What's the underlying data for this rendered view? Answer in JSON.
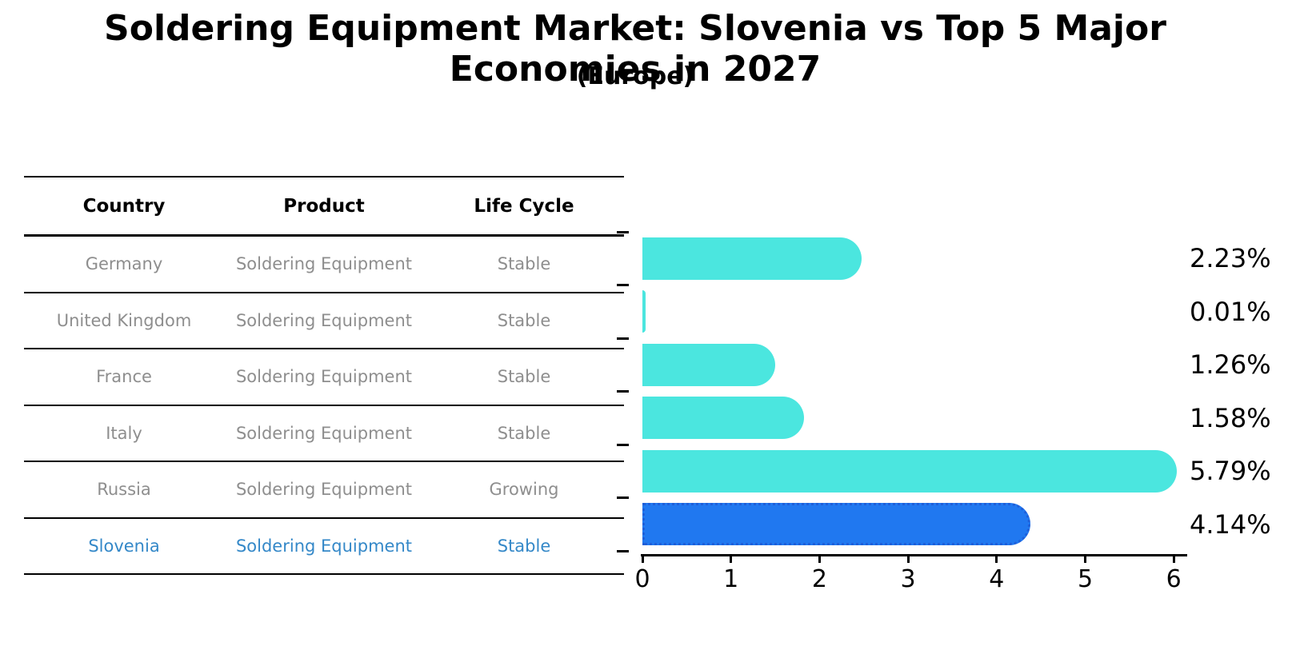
{
  "header": {
    "title": "Soldering Equipment Market: Slovenia vs Top 5 Major Economies in 2027",
    "subtitle": "(Europe)"
  },
  "table": {
    "columns": [
      "Country",
      "Product",
      "Life Cycle"
    ],
    "rows": [
      {
        "country": "Germany",
        "product": "Soldering Equipment",
        "life_cycle": "Stable",
        "highlighted": false
      },
      {
        "country": "United Kingdom",
        "product": "Soldering Equipment",
        "life_cycle": "Stable",
        "highlighted": false
      },
      {
        "country": "France",
        "product": "Soldering Equipment",
        "life_cycle": "Stable",
        "highlighted": false
      },
      {
        "country": "Italy",
        "product": "Soldering Equipment",
        "life_cycle": "Stable",
        "highlighted": false
      },
      {
        "country": "Russia",
        "product": "Soldering Equipment",
        "life_cycle": "Growing",
        "highlighted": false
      },
      {
        "country": "Slovenia",
        "product": "Soldering Equipment",
        "life_cycle": "Stable",
        "highlighted": true
      }
    ]
  },
  "chart_data": {
    "type": "bar",
    "orientation": "horizontal",
    "title": "Soldering Equipment Market: Slovenia vs Top 5 Major Economies in 2027 (Europe)",
    "categories": [
      "Germany",
      "United Kingdom",
      "France",
      "Italy",
      "Russia",
      "Slovenia"
    ],
    "values": [
      2.23,
      0.01,
      1.26,
      1.58,
      5.79,
      4.14
    ],
    "value_labels": [
      "2.23%",
      "0.01%",
      "1.26%",
      "1.58%",
      "5.79%",
      "4.14%"
    ],
    "xlabel": "",
    "ylabel": "",
    "xlim": [
      0,
      6
    ],
    "x_ticks": [
      0,
      1,
      2,
      3,
      4,
      5,
      6
    ],
    "grid": false,
    "legend": false,
    "highlight_category": "Slovenia",
    "colors": {
      "bar": "#4BE6DF",
      "highlight_bar": "#2078F0",
      "highlight_border": "#1E5FD9",
      "highlight_text": "#3488C8",
      "row_text": "#8E8E8E",
      "axis": "#000000",
      "label_text": "#000000"
    }
  }
}
